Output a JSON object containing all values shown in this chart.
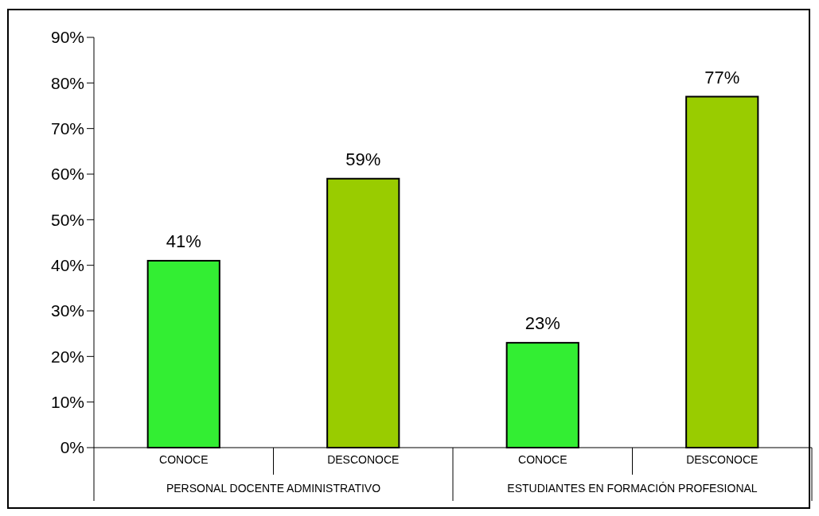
{
  "chart_data": {
    "type": "bar",
    "categories": [
      "CONOCE",
      "DESCONOCE",
      "CONOCE",
      "DESCONOCE"
    ],
    "values": [
      41,
      59,
      23,
      77
    ],
    "colors": [
      "#33ee33",
      "#99cc00",
      "#33ee33",
      "#99cc00"
    ],
    "value_labels": [
      "41%",
      "59%",
      "23%",
      "77%"
    ],
    "ylim": [
      0,
      90
    ],
    "yticks": [
      {
        "value": 0,
        "label": "0%"
      },
      {
        "value": 10,
        "label": "10%"
      },
      {
        "value": 20,
        "label": "20%"
      },
      {
        "value": 30,
        "label": "30%"
      },
      {
        "value": 40,
        "label": "40%"
      },
      {
        "value": 50,
        "label": "50%"
      },
      {
        "value": 60,
        "label": "60%"
      },
      {
        "value": 70,
        "label": "70%"
      },
      {
        "value": 80,
        "label": "80%"
      },
      {
        "value": 90,
        "label": "90%"
      }
    ],
    "annotations": [
      "PERSONAL DOCENTE ADMINISTRATIVO",
      "ESTUDIANTES EN FORMACIÓN PROFESIONAL"
    ],
    "grid": false
  }
}
